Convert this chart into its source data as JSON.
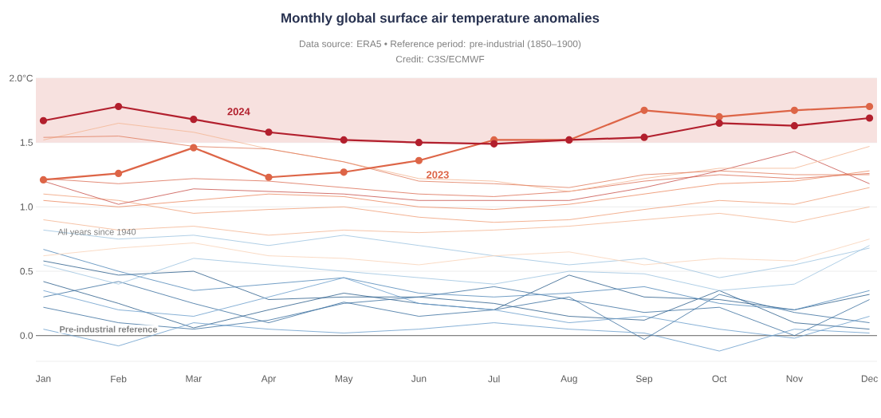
{
  "chart_data": {
    "type": "line",
    "title": "Monthly global surface air temperature anomalies",
    "subtitle": "Data source: ERA5 • Reference period: pre-industrial (1850–1900)",
    "annotations": [
      "Credit: C3S/ECMWF",
      "All years since 1940",
      "Pre-industrial reference"
    ],
    "categories": [
      "Jan",
      "Feb",
      "Mar",
      "Apr",
      "May",
      "Jun",
      "Jul",
      "Aug",
      "Sep",
      "Oct",
      "Nov",
      "Dec"
    ],
    "ylim": [
      -0.2,
      2.0
    ],
    "yticks": [
      {
        "value": 0,
        "label": "0.0"
      },
      {
        "value": 0.5,
        "label": "0.5"
      },
      {
        "value": 1.0,
        "label": "1.0"
      },
      {
        "value": 1.5,
        "label": "1.5"
      },
      {
        "value": 2.0,
        "label": "2.0°C"
      }
    ],
    "grid": "y",
    "marker": "none",
    "line_style": "solid",
    "bands": [
      {
        "axis": "y",
        "from": 1.5,
        "to": 2.0,
        "color": "#f7e1df"
      }
    ],
    "ref_lines": [
      {
        "axis": "y",
        "value": 0,
        "color": "#666666"
      }
    ],
    "series": [
      {
        "color": "#2b5d8a",
        "values": [
          0.42,
          0.25,
          0.06,
          0.2,
          0.33,
          0.25,
          0.2,
          0.47,
          0.3,
          0.28,
          0.2,
          0.32
        ]
      },
      {
        "color": "#2b5d8a",
        "values": [
          0.58,
          0.47,
          0.5,
          0.28,
          0.3,
          0.3,
          0.25,
          0.15,
          0.12,
          0.35,
          0.1,
          0.05
        ]
      },
      {
        "color": "#3a6f9e",
        "values": [
          0.3,
          0.42,
          0.25,
          0.1,
          0.26,
          0.15,
          0.2,
          0.3,
          -0.03,
          0.32,
          0.18,
          0.1
        ]
      },
      {
        "color": "#3a6f9e",
        "values": [
          0.22,
          0.1,
          0.05,
          0.12,
          0.25,
          0.3,
          0.38,
          0.28,
          0.18,
          0.22,
          0.0,
          0.28
        ]
      },
      {
        "color": "#4f86b8",
        "values": [
          0.67,
          0.5,
          0.35,
          0.4,
          0.45,
          0.33,
          0.3,
          0.33,
          0.38,
          0.25,
          0.2,
          0.35
        ]
      },
      {
        "color": "#6a9dcb",
        "values": [
          0.05,
          -0.08,
          0.1,
          0.05,
          0.02,
          0.05,
          0.1,
          0.05,
          0.02,
          -0.12,
          0.05,
          0.02
        ]
      },
      {
        "color": "#6a9dcb",
        "values": [
          0.35,
          0.2,
          0.15,
          0.3,
          0.45,
          0.25,
          0.2,
          0.1,
          0.15,
          0.05,
          -0.02,
          0.15
        ]
      },
      {
        "color": "#9cc3e0",
        "values": [
          0.82,
          0.75,
          0.78,
          0.7,
          0.78,
          0.7,
          0.62,
          0.55,
          0.6,
          0.45,
          0.55,
          0.68
        ]
      },
      {
        "color": "#9cc3e0",
        "values": [
          0.55,
          0.4,
          0.6,
          0.55,
          0.5,
          0.45,
          0.4,
          0.5,
          0.48,
          0.35,
          0.4,
          0.7
        ]
      },
      {
        "color": "#f9d2b6",
        "values": [
          0.62,
          0.68,
          0.72,
          0.62,
          0.6,
          0.55,
          0.62,
          0.65,
          0.55,
          0.6,
          0.58,
          0.75
        ]
      },
      {
        "color": "#f4b592",
        "values": [
          0.9,
          0.82,
          0.85,
          0.78,
          0.82,
          0.8,
          0.82,
          0.85,
          0.9,
          0.95,
          0.88,
          1.0
        ]
      },
      {
        "color": "#f09e77",
        "values": [
          1.1,
          1.05,
          0.95,
          0.98,
          1.0,
          0.92,
          0.88,
          0.9,
          0.98,
          1.05,
          1.02,
          1.15
        ]
      },
      {
        "color": "#ec8a62",
        "values": [
          1.05,
          1.0,
          1.05,
          1.1,
          1.08,
          1.0,
          0.98,
          1.02,
          1.1,
          1.18,
          1.2,
          1.28
        ]
      },
      {
        "color": "#dc6e55",
        "values": [
          1.22,
          1.18,
          1.22,
          1.2,
          1.15,
          1.1,
          1.08,
          1.12,
          1.2,
          1.25,
          1.22,
          1.26
        ]
      },
      {
        "color": "#c8504a",
        "values": [
          1.2,
          1.02,
          1.14,
          1.12,
          1.1,
          1.05,
          1.05,
          1.05,
          1.15,
          1.28,
          1.43,
          1.18
        ]
      },
      {
        "color": "#f4b592",
        "values": [
          1.52,
          1.65,
          1.58,
          1.45,
          1.35,
          1.22,
          1.2,
          1.12,
          1.22,
          1.3,
          1.3,
          1.47
        ]
      },
      {
        "color": "#e07b5c",
        "values": [
          1.54,
          1.55,
          1.47,
          1.45,
          1.35,
          1.2,
          1.18,
          1.15,
          1.25,
          1.28,
          1.25,
          1.25
        ]
      },
      {
        "name": "2023",
        "color": "#dd6547",
        "marker": "circle",
        "values": [
          1.21,
          1.26,
          1.46,
          1.23,
          1.27,
          1.36,
          1.52,
          1.52,
          1.75,
          1.7,
          1.75,
          1.78
        ]
      },
      {
        "name": "2024",
        "color": "#b21f2d",
        "marker": "circle",
        "values": [
          1.67,
          1.78,
          1.68,
          1.58,
          1.52,
          1.5,
          1.49,
          1.52,
          1.54,
          1.65,
          1.63,
          1.69
        ]
      }
    ]
  }
}
